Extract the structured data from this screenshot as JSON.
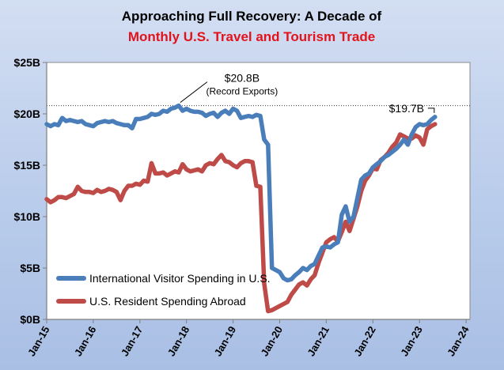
{
  "chart_data": {
    "type": "line",
    "title_line1": "Approaching Full Recovery: A Decade of",
    "title_line2": "Monthly U.S. Travel and Tourism Trade",
    "title_line2_color": "#e3131b",
    "xlabel": "",
    "ylabel": "",
    "ylim": [
      0,
      25
    ],
    "y_ticks": [
      {
        "value": 0,
        "label": "$0B"
      },
      {
        "value": 5,
        "label": "$5B"
      },
      {
        "value": 10,
        "label": "$10B"
      },
      {
        "value": 15,
        "label": "$15B"
      },
      {
        "value": 20,
        "label": "$20B"
      },
      {
        "value": 25,
        "label": "$25B"
      }
    ],
    "x_ticks": [
      {
        "value": 0,
        "label": "Jan-15"
      },
      {
        "value": 12,
        "label": "Jan-16"
      },
      {
        "value": 24,
        "label": "Jan-17"
      },
      {
        "value": 36,
        "label": "Jan-18"
      },
      {
        "value": 48,
        "label": "Jan-19"
      },
      {
        "value": 60,
        "label": "Jan-20"
      },
      {
        "value": 72,
        "label": "Jan-21"
      },
      {
        "value": 84,
        "label": "Jan-22"
      },
      {
        "value": 96,
        "label": "Jan-23"
      },
      {
        "value": 108,
        "label": "Jan-24"
      }
    ],
    "x_unit": "months since Jan-2015",
    "xlim": [
      0,
      109
    ],
    "series": [
      {
        "name": "International Visitor Spending in U.S.",
        "color": "#4a7ebb",
        "anchors": [
          [
            0,
            19.0
          ],
          [
            1,
            18.8
          ],
          [
            2,
            19.0
          ],
          [
            3,
            18.9
          ],
          [
            4,
            19.6
          ],
          [
            5,
            19.3
          ],
          [
            6,
            19.4
          ],
          [
            7,
            19.3
          ],
          [
            8,
            19.2
          ],
          [
            9,
            19.3
          ],
          [
            10,
            19.0
          ],
          [
            11,
            18.9
          ],
          [
            12,
            18.8
          ],
          [
            13,
            19.1
          ],
          [
            14,
            19.2
          ],
          [
            15,
            19.3
          ],
          [
            16,
            19.2
          ],
          [
            17,
            19.3
          ],
          [
            18,
            19.1
          ],
          [
            19,
            19.0
          ],
          [
            20,
            18.9
          ],
          [
            21,
            18.9
          ],
          [
            22,
            18.6
          ],
          [
            23,
            19.5
          ],
          [
            24,
            19.5
          ],
          [
            25,
            19.6
          ],
          [
            26,
            19.7
          ],
          [
            27,
            20.0
          ],
          [
            28,
            19.9
          ],
          [
            29,
            20.0
          ],
          [
            30,
            20.3
          ],
          [
            31,
            20.2
          ],
          [
            32,
            20.5
          ],
          [
            33,
            20.6
          ],
          [
            34,
            20.8
          ],
          [
            35,
            20.3
          ],
          [
            36,
            20.5
          ],
          [
            37,
            20.3
          ],
          [
            38,
            20.2
          ],
          [
            39,
            20.2
          ],
          [
            40,
            20.1
          ],
          [
            41,
            19.8
          ],
          [
            42,
            20.0
          ],
          [
            43,
            20.1
          ],
          [
            44,
            19.7
          ],
          [
            45,
            20.1
          ],
          [
            46,
            20.3
          ],
          [
            47,
            20.0
          ],
          [
            48,
            20.5
          ],
          [
            49,
            20.3
          ],
          [
            50,
            19.6
          ],
          [
            51,
            19.7
          ],
          [
            52,
            19.8
          ],
          [
            53,
            19.7
          ],
          [
            54,
            19.9
          ],
          [
            55,
            19.8
          ],
          [
            56,
            17.5
          ],
          [
            57,
            17.0
          ],
          [
            58,
            5.0
          ],
          [
            59,
            4.8
          ],
          [
            60,
            4.6
          ],
          [
            61,
            4.0
          ],
          [
            62,
            3.8
          ],
          [
            63,
            3.9
          ],
          [
            64,
            4.3
          ],
          [
            65,
            4.6
          ],
          [
            66,
            5.0
          ],
          [
            67,
            4.8
          ],
          [
            68,
            5.2
          ],
          [
            69,
            5.4
          ],
          [
            70,
            6.2
          ],
          [
            71,
            7.0
          ],
          [
            72,
            7.1
          ],
          [
            73,
            7.0
          ],
          [
            74,
            7.3
          ],
          [
            75,
            7.5
          ],
          [
            76,
            10.2
          ],
          [
            77,
            11.0
          ],
          [
            78,
            9.5
          ],
          [
            79,
            10.0
          ],
          [
            80,
            11.8
          ],
          [
            81,
            13.6
          ],
          [
            82,
            14.0
          ],
          [
            83,
            14.2
          ],
          [
            84,
            14.8
          ],
          [
            85,
            15.1
          ],
          [
            86,
            15.4
          ],
          [
            87,
            15.8
          ],
          [
            88,
            16.0
          ],
          [
            89,
            16.3
          ],
          [
            90,
            16.6
          ],
          [
            91,
            17.0
          ],
          [
            92,
            17.5
          ],
          [
            93,
            17.0
          ],
          [
            94,
            18.0
          ],
          [
            95,
            18.7
          ],
          [
            96,
            19.0
          ],
          [
            97,
            18.9
          ],
          [
            98,
            19.0
          ],
          [
            99,
            19.4
          ],
          [
            100,
            19.7
          ]
        ]
      },
      {
        "name": "U.S. Resident Spending Abroad",
        "color": "#be4b48",
        "anchors": [
          [
            0,
            11.7
          ],
          [
            1,
            11.4
          ],
          [
            2,
            11.6
          ],
          [
            3,
            11.9
          ],
          [
            4,
            11.9
          ],
          [
            5,
            11.8
          ],
          [
            6,
            12.0
          ],
          [
            7,
            12.2
          ],
          [
            8,
            12.9
          ],
          [
            9,
            12.5
          ],
          [
            10,
            12.4
          ],
          [
            11,
            12.4
          ],
          [
            12,
            12.3
          ],
          [
            13,
            12.6
          ],
          [
            14,
            12.4
          ],
          [
            15,
            12.5
          ],
          [
            16,
            12.7
          ],
          [
            17,
            12.6
          ],
          [
            18,
            12.4
          ],
          [
            19,
            11.6
          ],
          [
            20,
            12.5
          ],
          [
            21,
            13.0
          ],
          [
            22,
            13.0
          ],
          [
            23,
            13.2
          ],
          [
            24,
            13.1
          ],
          [
            25,
            13.5
          ],
          [
            26,
            13.4
          ],
          [
            27,
            15.2
          ],
          [
            28,
            14.2
          ],
          [
            29,
            14.2
          ],
          [
            30,
            14.3
          ],
          [
            31,
            14.0
          ],
          [
            32,
            14.2
          ],
          [
            33,
            14.4
          ],
          [
            34,
            14.3
          ],
          [
            35,
            15.1
          ],
          [
            36,
            14.6
          ],
          [
            37,
            14.4
          ],
          [
            38,
            14.5
          ],
          [
            39,
            14.6
          ],
          [
            40,
            14.4
          ],
          [
            41,
            15.0
          ],
          [
            42,
            15.2
          ],
          [
            43,
            15.1
          ],
          [
            44,
            15.6
          ],
          [
            45,
            16.0
          ],
          [
            46,
            15.4
          ],
          [
            47,
            15.3
          ],
          [
            48,
            15.0
          ],
          [
            49,
            14.8
          ],
          [
            50,
            15.2
          ],
          [
            51,
            15.4
          ],
          [
            52,
            15.4
          ],
          [
            53,
            15.3
          ],
          [
            54,
            13.0
          ],
          [
            55,
            12.9
          ],
          [
            56,
            3.5
          ],
          [
            57,
            0.8
          ],
          [
            58,
            0.9
          ],
          [
            59,
            1.1
          ],
          [
            60,
            1.3
          ],
          [
            61,
            1.5
          ],
          [
            62,
            1.7
          ],
          [
            63,
            2.4
          ],
          [
            64,
            2.9
          ],
          [
            65,
            3.4
          ],
          [
            66,
            3.6
          ],
          [
            67,
            3.3
          ],
          [
            68,
            3.9
          ],
          [
            69,
            4.3
          ],
          [
            70,
            5.5
          ],
          [
            71,
            6.5
          ],
          [
            72,
            7.5
          ],
          [
            73,
            7.8
          ],
          [
            74,
            8.0
          ],
          [
            75,
            7.6
          ],
          [
            76,
            8.5
          ],
          [
            77,
            9.5
          ],
          [
            78,
            8.6
          ],
          [
            79,
            9.8
          ],
          [
            80,
            11.0
          ],
          [
            81,
            12.5
          ],
          [
            82,
            13.5
          ],
          [
            83,
            14.0
          ],
          [
            84,
            14.7
          ],
          [
            85,
            14.6
          ],
          [
            86,
            15.5
          ],
          [
            87,
            15.8
          ],
          [
            88,
            16.2
          ],
          [
            89,
            16.8
          ],
          [
            90,
            17.2
          ],
          [
            91,
            18.0
          ],
          [
            92,
            17.8
          ],
          [
            93,
            17.6
          ],
          [
            94,
            17.6
          ],
          [
            95,
            17.9
          ],
          [
            96,
            17.7
          ],
          [
            97,
            17.0
          ],
          [
            98,
            18.5
          ],
          [
            99,
            18.8
          ],
          [
            100,
            19.0
          ]
        ]
      }
    ],
    "reference_line": {
      "value": 20.8,
      "style": "dotted"
    },
    "annotations": [
      {
        "text": "$20.8B",
        "subtext": "(Record Exports)",
        "x": 34,
        "y": 20.8
      },
      {
        "text": "$19.7B",
        "x": 100,
        "y": 19.7
      }
    ],
    "legend_position": "bottom-left",
    "grid": false
  }
}
